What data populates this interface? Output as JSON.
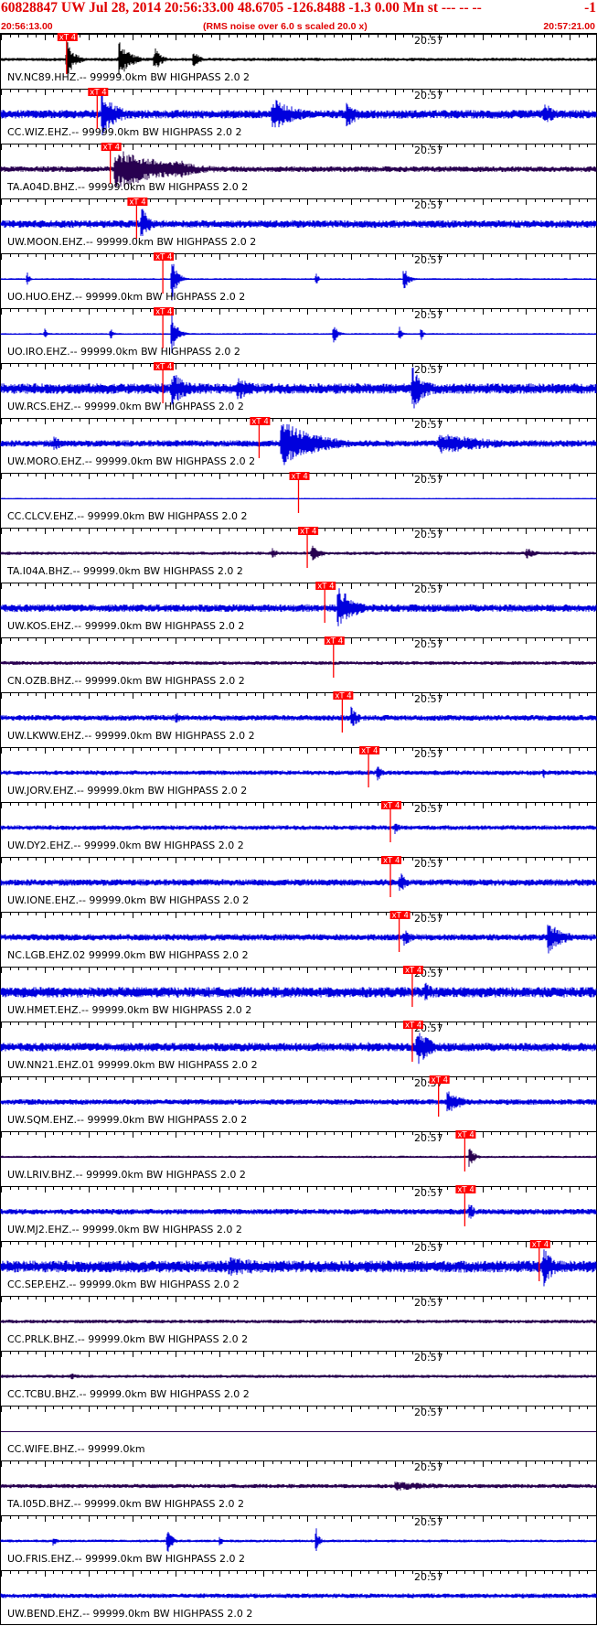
{
  "header": {
    "title": "60828847 UW Jul 28, 2014 20:56:33.00   48.6705 -126.8488 -1.3 0.00 Mn st --- -- --",
    "title_right": "-1",
    "start_time": "20:56:13.00",
    "subtitle": "(RMS noise over 6.0 s scaled 20.0 x)",
    "end_time": "20:57:21.00"
  },
  "colors": {
    "header_red": "#e00000",
    "pick_red": "#ff0000",
    "blue": "#0000dd",
    "purple": "#280050",
    "black": "#000000"
  },
  "chart_data": {
    "type": "line",
    "description": "record section",
    "x_start": "20:56:13.00",
    "x_end": "20:57:21.00",
    "xlim_seconds": [
      0,
      68
    ],
    "tick_label": "20:57",
    "tick_label_seconds": 47,
    "pick_label": "xT 4",
    "traces": [
      {
        "label": "NV.NC89.HHZ.-- 99999.0km BW  HIGHPASS  2.0  2",
        "color": "black",
        "pick_s": 7.5,
        "events": [
          {
            "t": 7.5,
            "a": 0.85,
            "d": 1.5
          },
          {
            "t": 13.5,
            "a": 0.9,
            "d": 2
          },
          {
            "t": 17.5,
            "a": 0.55,
            "d": 1.5
          },
          {
            "t": 22,
            "a": 0.45,
            "d": 1
          }
        ],
        "noise": 0.07
      },
      {
        "label": "CC.WIZ.EHZ.-- 99999.0km BW  HIGHPASS  2.0  2",
        "color": "blue",
        "pick_s": 11,
        "events": [
          {
            "t": 11.5,
            "a": 1,
            "d": 3
          },
          {
            "t": 31,
            "a": 0.7,
            "d": 5
          },
          {
            "t": 39.5,
            "a": 0.7,
            "d": 2
          },
          {
            "t": 62,
            "a": 0.6,
            "d": 2
          }
        ],
        "noise": 0.18
      },
      {
        "label": "TA.A04D.BHZ.-- 99999.0km BW  HIGHPASS  2.0  2",
        "color": "purple",
        "pick_s": 12.5,
        "events": [
          {
            "t": 13,
            "a": 0.9,
            "d": 10
          },
          {
            "t": 20,
            "a": 0.5,
            "d": 4
          }
        ],
        "noise": 0.12
      },
      {
        "label": "UW.MOON.EHZ.-- 99999.0km BW  HIGHPASS  2.0  2",
        "color": "blue",
        "pick_s": 15.5,
        "events": [
          {
            "t": 16,
            "a": 0.85,
            "d": 1.5
          }
        ],
        "noise": 0.16
      },
      {
        "label": "UO.HUO.EHZ.-- 99999.0km BW  HIGHPASS  2.0  2",
        "color": "blue",
        "pick_s": 18.5,
        "events": [
          {
            "t": 19.5,
            "a": 1,
            "d": 1
          },
          {
            "t": 3,
            "a": 0.3,
            "d": 0.5
          },
          {
            "t": 46,
            "a": 0.55,
            "d": 1
          },
          {
            "t": 36,
            "a": 0.3,
            "d": 0.5
          }
        ],
        "noise": 0.03
      },
      {
        "label": "UO.IRO.EHZ.-- 99999.0km BW  HIGHPASS  2.0  2",
        "color": "blue",
        "pick_s": 18.5,
        "events": [
          {
            "t": 19.5,
            "a": 1,
            "d": 1
          },
          {
            "t": 5,
            "a": 0.3,
            "d": 0.5
          },
          {
            "t": 12.5,
            "a": 0.35,
            "d": 0.5
          },
          {
            "t": 38,
            "a": 0.45,
            "d": 0.8
          },
          {
            "t": 45.5,
            "a": 0.4,
            "d": 0.5
          },
          {
            "t": 48,
            "a": 0.3,
            "d": 0.5
          }
        ],
        "noise": 0.03
      },
      {
        "label": "UW.RCS.EHZ.-- 99999.0km BW  HIGHPASS  2.0  2",
        "color": "blue",
        "pick_s": 18.5,
        "events": [
          {
            "t": 19.5,
            "a": 0.8,
            "d": 3
          },
          {
            "t": 27,
            "a": 0.5,
            "d": 4
          },
          {
            "t": 47,
            "a": 1,
            "d": 2.5
          }
        ],
        "noise": 0.22
      },
      {
        "label": "UW.MORO.EHZ.-- 99999.0km BW  HIGHPASS  2.0  2",
        "color": "blue",
        "pick_s": 29.5,
        "events": [
          {
            "t": 32,
            "a": 1,
            "d": 7
          },
          {
            "t": 50,
            "a": 0.45,
            "d": 12
          },
          {
            "t": 6,
            "a": 0.35,
            "d": 2
          }
        ],
        "noise": 0.14
      },
      {
        "label": "CC.CLCV.EHZ.-- 99999.0km BW  HIGHPASS  2.0  2",
        "color": "blue",
        "pick_s": 34,
        "events": [],
        "noise": 0.02
      },
      {
        "label": "TA.I04A.BHZ.-- 99999.0km BW  HIGHPASS  2.0  2",
        "color": "purple",
        "pick_s": 35,
        "events": [
          {
            "t": 35.5,
            "a": 0.35,
            "d": 2
          },
          {
            "t": 31,
            "a": 0.25,
            "d": 1
          },
          {
            "t": 60,
            "a": 0.25,
            "d": 2
          }
        ],
        "noise": 0.07
      },
      {
        "label": "UW.KOS.EHZ.-- 99999.0km BW  HIGHPASS  2.0  2",
        "color": "blue",
        "pick_s": 37,
        "events": [
          {
            "t": 38.5,
            "a": 1,
            "d": 3
          }
        ],
        "noise": 0.16
      },
      {
        "label": "CN.OZB.BHZ.-- 99999.0km BW  HIGHPASS  2.0  2",
        "color": "purple",
        "pick_s": 38,
        "events": [],
        "noise": 0.08
      },
      {
        "label": "UW.LKWW.EHZ.-- 99999.0km BW  HIGHPASS  2.0  2",
        "color": "blue",
        "pick_s": 39,
        "events": [
          {
            "t": 40,
            "a": 0.5,
            "d": 1.5
          },
          {
            "t": 20,
            "a": 0.3,
            "d": 1
          }
        ],
        "noise": 0.12
      },
      {
        "label": "UW.JORV.EHZ.-- 99999.0km BW  HIGHPASS  2.0  2",
        "color": "blue",
        "pick_s": 42,
        "events": [
          {
            "t": 43,
            "a": 0.4,
            "d": 1
          },
          {
            "t": 62,
            "a": 0.3,
            "d": 0.5
          }
        ],
        "noise": 0.1
      },
      {
        "label": "UW.DY2.EHZ.-- 99999.0km BW  HIGHPASS  2.0  2",
        "color": "blue",
        "pick_s": 44.5,
        "events": [
          {
            "t": 45,
            "a": 0.3,
            "d": 1
          }
        ],
        "noise": 0.1
      },
      {
        "label": "UW.IONE.EHZ.-- 99999.0km BW  HIGHPASS  2.0  2",
        "color": "blue",
        "pick_s": 44.5,
        "events": [
          {
            "t": 45.5,
            "a": 0.5,
            "d": 1.5
          }
        ],
        "noise": 0.14
      },
      {
        "label": "NC.LGB.EHZ.02 99999.0km BW  HIGHPASS  2.0  2",
        "color": "blue",
        "pick_s": 45.5,
        "events": [
          {
            "t": 46,
            "a": 0.45,
            "d": 1.5
          },
          {
            "t": 62.5,
            "a": 0.7,
            "d": 3
          }
        ],
        "noise": 0.14
      },
      {
        "label": "UW.HMET.EHZ.-- 99999.0km BW  HIGHPASS  2.0  2",
        "color": "blue",
        "pick_s": 47,
        "events": [
          {
            "t": 48.5,
            "a": 0.5,
            "d": 2
          }
        ],
        "noise": 0.22
      },
      {
        "label": "UW.NN21.EHZ.01 99999.0km BW  HIGHPASS  2.0  2",
        "color": "blue",
        "pick_s": 47,
        "events": [
          {
            "t": 47.5,
            "a": 0.9,
            "d": 2.5
          },
          {
            "t": 42,
            "a": 0.3,
            "d": 1
          }
        ],
        "noise": 0.18
      },
      {
        "label": "UW.SQM.EHZ.-- 99999.0km BW  HIGHPASS  2.0  2",
        "color": "blue",
        "pick_s": 50,
        "events": [
          {
            "t": 51,
            "a": 0.5,
            "d": 3
          }
        ],
        "noise": 0.12
      },
      {
        "label": "UW.LRIV.BHZ.-- 99999.0km BW  HIGHPASS  2.0  2",
        "color": "purple",
        "pick_s": 53,
        "events": [
          {
            "t": 53.5,
            "a": 0.5,
            "d": 1
          }
        ],
        "noise": 0.05
      },
      {
        "label": "UW.MJ2.EHZ.-- 99999.0km BW  HIGHPASS  2.0  2",
        "color": "blue",
        "pick_s": 53,
        "events": [
          {
            "t": 53.5,
            "a": 0.45,
            "d": 1
          }
        ],
        "noise": 0.12
      },
      {
        "label": "CC.SEP.EHZ.-- 99999.0km BW  HIGHPASS  2.0  2",
        "color": "blue",
        "pick_s": 61.5,
        "events": [
          {
            "t": 62,
            "a": 0.95,
            "d": 2
          },
          {
            "t": 26,
            "a": 0.4,
            "d": 15
          }
        ],
        "noise": 0.25
      },
      {
        "label": "CC.PRLK.BHZ.-- 99999.0km BW  HIGHPASS  2.0  2",
        "color": "purple",
        "pick_s": null,
        "events": [],
        "noise": 0.08
      },
      {
        "label": "CC.TCBU.BHZ.-- 99999.0km BW  HIGHPASS  2.0  2",
        "color": "purple",
        "pick_s": null,
        "events": [
          {
            "t": 8,
            "a": 0.2,
            "d": 1
          }
        ],
        "noise": 0.07
      },
      {
        "label": "CC.WIFE.BHZ.-- 99999.0km",
        "color": "purple",
        "pick_s": null,
        "events": [],
        "noise": 0
      },
      {
        "label": "TA.I05D.BHZ.-- 99999.0km BW  HIGHPASS  2.0  2",
        "color": "purple",
        "pick_s": null,
        "events": [
          {
            "t": 45,
            "a": 0.2,
            "d": 12
          }
        ],
        "noise": 0.09
      },
      {
        "label": "UO.FRIS.EHZ.-- 99999.0km BW  HIGHPASS  2.0  2",
        "color": "blue",
        "pick_s": null,
        "events": [
          {
            "t": 19,
            "a": 0.55,
            "d": 1
          },
          {
            "t": 36,
            "a": 0.7,
            "d": 0.6
          },
          {
            "t": 6,
            "a": 0.3,
            "d": 0.5
          },
          {
            "t": 25,
            "a": 0.3,
            "d": 0.5
          }
        ],
        "noise": 0.06
      },
      {
        "label": "UW.BEND.EHZ.-- 99999.0km BW  HIGHPASS  2.0  2",
        "color": "blue",
        "pick_s": null,
        "events": [],
        "noise": 0.1
      }
    ]
  }
}
